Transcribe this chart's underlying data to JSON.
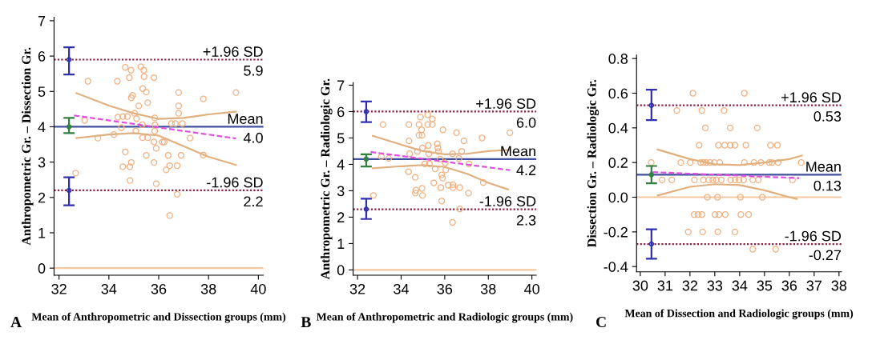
{
  "chart_data": [
    {
      "type": "scatter",
      "xlabel": "Mean of Anthropometric and Dissection groups (mm)",
      "ylabel": "Anthropometric Gr. – Dissection Gr.",
      "xlim": [
        31.8,
        40.2
      ],
      "ylim": [
        -0.2,
        7.1
      ],
      "xticks": [
        32,
        34,
        36,
        38,
        40
      ],
      "yticks": [
        0,
        1,
        2,
        3,
        4,
        5,
        6,
        7
      ],
      "annotations": [
        "A",
        {
          "text": "5.9",
          "y": 5.9
        },
        {
          "text": "4.0",
          "y": 4.0
        },
        {
          "text": "2.2",
          "y": 2.2
        }
      ],
      "ref_lines": [
        {
          "axis": "y",
          "value": 5.9,
          "label": "+1.96 SD",
          "color": "#8b2040",
          "line_style": "dotted"
        },
        {
          "axis": "y",
          "value": 4.0,
          "label": "Mean",
          "color": "#40509c",
          "line_style": "solid"
        },
        {
          "axis": "y",
          "value": 2.2,
          "label": "-1.96 SD",
          "color": "#8b2040",
          "line_style": "dotted"
        },
        {
          "axis": "y",
          "value": 0,
          "color": "#f5c8a0",
          "line_style": "solid"
        }
      ],
      "series": [
        {
          "type": "scatter",
          "marker": "circle",
          "color": "#f0b080",
          "x": [
            32.67,
            33.03,
            33.16,
            33.56,
            34.2,
            34.34,
            34.36,
            34.5,
            34.56,
            34.66,
            34.66,
            34.56,
            34.74,
            34.82,
            34.89,
            34.84,
            34.9,
            34.9,
            34.95,
            34.85,
            35.03,
            35.08,
            35.11,
            35.2,
            35.28,
            35.36,
            35.4,
            35.41,
            35.34,
            35.35,
            35.5,
            35.5,
            35.56,
            35.56,
            35.81,
            35.81,
            35.84,
            35.85,
            35.84,
            35.81,
            35.9,
            35.9,
            36.15,
            36.22,
            36.38,
            36.3,
            36.44,
            36.44,
            36.51,
            36.67,
            36.74,
            36.74,
            36.8,
            36.8,
            36.8,
            36.9,
            36.95,
            37.26,
            37.79,
            37.79,
            39.1
          ],
          "values": [
            2.69,
            4.18,
            5.29,
            3.68,
            3.78,
            5.29,
            4.27,
            3.97,
            4.29,
            5.68,
            3.29,
            2.87,
            4.29,
            5.39,
            5.6,
            2.87,
            2.99,
            4.82,
            4.89,
            2.48,
            4.38,
            3.88,
            4.23,
            4.59,
            5.7,
            5.08,
            5.6,
            5.42,
            4.06,
            3.69,
            4.98,
            3.19,
            4.68,
            3.69,
            5.39,
            2.99,
            4.25,
            4.05,
            3.88,
            3.57,
            3.39,
            2.39,
            3.57,
            3.57,
            3.19,
            2.78,
            2.9,
            1.49,
            4.09,
            4.09,
            2.9,
            2.09,
            4.97,
            4.59,
            4.38,
            3.19,
            4.09,
            3.68,
            4.79,
            3.2,
            4.97
          ]
        },
        {
          "type": "line",
          "line_style": "dashed",
          "color": "#e050e0",
          "x": [
            32.6,
            39.1
          ],
          "values": [
            4.32,
            3.67
          ]
        },
        {
          "type": "line",
          "color": "#e0b080",
          "x": [
            32.7,
            34,
            35,
            36,
            37,
            38,
            39.1
          ],
          "values": [
            4.95,
            4.6,
            4.38,
            4.22,
            4.25,
            4.35,
            4.43
          ]
        },
        {
          "type": "line",
          "color": "#e0b080",
          "x": [
            32.7,
            34,
            35,
            36,
            37,
            38,
            39.1
          ],
          "values": [
            3.68,
            3.78,
            3.82,
            3.75,
            3.45,
            3.15,
            2.92
          ]
        },
        {
          "type": "scatter",
          "marker": "circle",
          "x": [
            32.4,
            32.4
          ],
          "values": [
            5.9,
            2.2
          ],
          "errors": [
            [
              5.48,
              6.25
            ],
            [
              1.78,
              2.57
            ]
          ],
          "color": "#3030b0"
        },
        {
          "type": "scatter",
          "marker": "circle",
          "x": [
            32.4
          ],
          "values": [
            4.0
          ],
          "errors": [
            [
              3.82,
              4.25
            ]
          ],
          "color": "#308040"
        }
      ]
    },
    {
      "type": "scatter",
      "xlabel": "Mean of Anthropometric and Radiologic groups (mm)",
      "ylabel": "Anthropometric Gr. – Radiologic Gr.",
      "xlim": [
        31.8,
        40.2
      ],
      "ylim": [
        -0.2,
        7.1
      ],
      "xticks": [
        32,
        34,
        36,
        38,
        40
      ],
      "yticks": [
        0,
        1,
        2,
        3,
        4,
        5,
        6,
        7
      ],
      "annotations": [
        "B",
        {
          "text": "6.0",
          "y": 6.0
        },
        {
          "text": "4.2",
          "y": 4.2
        },
        {
          "text": "2.3",
          "y": 2.3
        }
      ],
      "ref_lines": [
        {
          "axis": "y",
          "value": 6.0,
          "label": "+1.96 SD",
          "color": "#8b2040",
          "line_style": "dotted"
        },
        {
          "axis": "y",
          "value": 4.2,
          "label": "Mean",
          "color": "#40509c",
          "line_style": "solid"
        },
        {
          "axis": "y",
          "value": 2.3,
          "label": "-1.96 SD",
          "color": "#8b2040",
          "line_style": "dotted"
        },
        {
          "axis": "y",
          "value": 0,
          "color": "#f5c8a0",
          "line_style": "solid"
        }
      ],
      "series": [
        {
          "type": "scatter",
          "marker": "circle",
          "color": "#f0b080",
          "x": [
            32.73,
            33.09,
            33.17,
            33.43,
            34.36,
            34.36,
            34.39,
            34.34,
            34.65,
            34.68,
            34.65,
            34.75,
            34.82,
            34.89,
            34.94,
            34.82,
            34.96,
            34.96,
            34.98,
            34.98,
            35.09,
            35.22,
            35.22,
            35.25,
            35.27,
            35.3,
            35.43,
            35.43,
            35.5,
            35.56,
            35.66,
            35.69,
            35.71,
            35.79,
            35.82,
            35.86,
            35.9,
            35.86,
            35.92,
            36.02,
            36.05,
            36.16,
            36.36,
            36.38,
            36.38,
            36.36,
            36.54,
            36.65,
            36.69,
            36.69,
            36.78,
            36.88,
            37.09,
            37.11,
            37.71,
            37.77,
            38.99
          ],
          "values": [
            2.82,
            4.29,
            5.51,
            4.23,
            5.51,
            4.89,
            4.4,
            3.72,
            3.51,
            3.02,
            2.91,
            4.49,
            5.51,
            5.79,
            5.31,
            5.1,
            5.1,
            3.09,
            2.82,
            4.62,
            4.02,
            5.51,
            5.88,
            4.71,
            4.4,
            4.02,
            5.51,
            5.72,
            3.3,
            3.83,
            4.78,
            4.62,
            4.49,
            4.2,
            3.12,
            3.6,
            3.48,
            2.61,
            5.31,
            4.06,
            3.79,
            3.21,
            4.4,
            3.23,
            3.12,
            1.8,
            5.2,
            4.22,
            3.12,
            2.31,
            4.49,
            4.89,
            2.91,
            4.02,
            5.0,
            3.31,
            5.2
          ]
        },
        {
          "type": "line",
          "line_style": "dashed",
          "color": "#e050e0",
          "x": [
            32.6,
            39.0
          ],
          "values": [
            4.47,
            3.78
          ]
        },
        {
          "type": "line",
          "color": "#e0b080",
          "x": [
            32.7,
            34,
            35,
            36,
            37,
            38,
            39
          ],
          "values": [
            5.08,
            4.75,
            4.5,
            4.38,
            4.4,
            4.5,
            4.55
          ]
        },
        {
          "type": "line",
          "color": "#e0b080",
          "x": [
            32.7,
            34,
            35,
            36,
            37,
            38,
            38.9
          ],
          "values": [
            3.85,
            3.93,
            3.97,
            3.9,
            3.65,
            3.3,
            3.05
          ]
        },
        {
          "type": "scatter",
          "marker": "circle",
          "x": [
            32.4,
            32.4
          ],
          "values": [
            6.0,
            2.3
          ],
          "errors": [
            [
              5.6,
              6.38
            ],
            [
              1.93,
              2.7
            ]
          ],
          "color": "#3030b0"
        },
        {
          "type": "scatter",
          "marker": "circle",
          "x": [
            32.4
          ],
          "values": [
            4.2
          ],
          "errors": [
            [
              3.92,
              4.38
            ]
          ],
          "color": "#308040"
        }
      ]
    },
    {
      "type": "scatter",
      "xlabel": "Mean of Dissection and Radiologic groups (mm)",
      "ylabel": "Dissection Gr. – Radiologic Gr.",
      "xlim": [
        29.85,
        38.1
      ],
      "ylim": [
        -0.43,
        0.82
      ],
      "xticks": [
        30,
        31,
        32,
        33,
        34,
        35,
        36,
        37,
        38
      ],
      "yticks": [
        {
          "value": -0.4,
          "label": "-0.4"
        },
        {
          "value": -0.2,
          "label": "-0.2"
        },
        {
          "value": 0,
          "label": "0.0"
        },
        {
          "value": 0.2,
          "label": "0.2"
        },
        {
          "value": 0.4,
          "label": "0.4"
        },
        {
          "value": 0.6,
          "label": "0.6"
        },
        {
          "value": 0.8,
          "label": "0.8"
        }
      ],
      "annotations": [
        "C",
        {
          "text": "0.53",
          "y": 0.53
        },
        {
          "text": "0.13",
          "y": 0.13
        },
        {
          "text": "-0.27",
          "y": -0.27
        }
      ],
      "ref_lines": [
        {
          "axis": "y",
          "value": 0.53,
          "label": "+1.96 SD",
          "color": "#8b2040",
          "line_style": "dotted"
        },
        {
          "axis": "y",
          "value": 0.13,
          "label": "Mean",
          "color": "#40509c",
          "line_style": "solid"
        },
        {
          "axis": "y",
          "value": -0.27,
          "label": "-1.96 SD",
          "color": "#8b2040",
          "line_style": "dotted"
        },
        {
          "axis": "y",
          "value": 0,
          "color": "#f5c8a0",
          "line_style": "solid"
        }
      ],
      "series": [
        {
          "type": "scatter",
          "marker": "circle",
          "color": "#f0b080",
          "x": [
            32.12,
            34.19,
            31.47,
            32.48,
            33.37,
            32.62,
            33.62,
            34.71,
            32.37,
            33.15,
            33.4,
            33.62,
            33.81,
            34.25,
            35.24,
            35.52,
            30.44,
            31.63,
            32.01,
            32.43,
            32.54,
            32.65,
            32.81,
            32.98,
            33.2,
            34.19,
            34.58,
            34.86,
            35.19,
            35.3,
            35.55,
            36.48,
            30.88,
            31.27,
            32.18,
            32.54,
            32.76,
            32.92,
            33.06,
            33.26,
            33.64,
            33.81,
            33.97,
            34.16,
            34.53,
            34.75,
            36.13,
            32.7,
            33.11,
            34.03,
            34.91,
            32.17,
            32.32,
            32.48,
            33.01,
            33.17,
            33.42,
            34.05,
            34.36,
            31.93,
            32.51,
            33.12,
            33.81,
            34.53,
            35.45
          ],
          "values": [
            0.6,
            0.6,
            0.5,
            0.5,
            0.5,
            0.4,
            0.4,
            0.4,
            0.3,
            0.3,
            0.3,
            0.3,
            0.3,
            0.3,
            0.3,
            0.3,
            0.2,
            0.2,
            0.2,
            0.2,
            0.2,
            0.2,
            0.2,
            0.2,
            0.2,
            0.2,
            0.2,
            0.2,
            0.2,
            0.2,
            0.2,
            0.2,
            0.1,
            0.1,
            0.1,
            0.1,
            0.1,
            0.1,
            0.1,
            0.1,
            0.1,
            0.1,
            0.1,
            0.1,
            0.1,
            0.1,
            0.1,
            0,
            0,
            0,
            0,
            -0.1,
            -0.1,
            -0.1,
            -0.1,
            -0.1,
            -0.1,
            -0.1,
            -0.1,
            -0.2,
            -0.2,
            -0.2,
            -0.2,
            -0.3,
            -0.3
          ]
        },
        {
          "type": "line",
          "line_style": "dashed",
          "color": "#e050e0",
          "x": [
            30.5,
            36.4
          ],
          "values": [
            0.145,
            0.11
          ]
        },
        {
          "type": "line",
          "color": "#e0b080",
          "x": [
            30.7,
            32,
            33,
            34,
            35,
            36,
            36.5
          ],
          "values": [
            0.275,
            0.22,
            0.19,
            0.185,
            0.2,
            0.22,
            0.24
          ]
        },
        {
          "type": "line",
          "color": "#e0b080",
          "x": [
            30.7,
            32,
            33,
            34,
            35,
            36,
            36.3
          ],
          "values": [
            0.01,
            0.06,
            0.075,
            0.07,
            0.04,
            0.0,
            -0.01
          ]
        },
        {
          "type": "scatter",
          "marker": "circle",
          "x": [
            30.45,
            30.45
          ],
          "values": [
            0.53,
            -0.27
          ],
          "errors": [
            [
              0.445,
              0.62
            ],
            [
              -0.355,
              -0.185
            ]
          ],
          "color": "#3030b0"
        },
        {
          "type": "scatter",
          "marker": "circle",
          "x": [
            30.45
          ],
          "values": [
            0.13
          ],
          "errors": [
            [
              0.08,
              0.18
            ]
          ],
          "color": "#308040"
        }
      ]
    }
  ]
}
